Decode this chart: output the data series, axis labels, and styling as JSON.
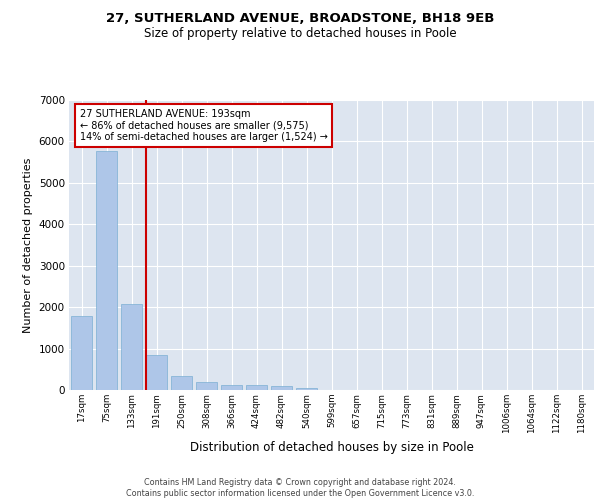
{
  "title_line1": "27, SUTHERLAND AVENUE, BROADSTONE, BH18 9EB",
  "title_line2": "Size of property relative to detached houses in Poole",
  "xlabel": "Distribution of detached houses by size in Poole",
  "ylabel": "Number of detached properties",
  "categories": [
    "17sqm",
    "75sqm",
    "133sqm",
    "191sqm",
    "250sqm",
    "308sqm",
    "366sqm",
    "424sqm",
    "482sqm",
    "540sqm",
    "599sqm",
    "657sqm",
    "715sqm",
    "773sqm",
    "831sqm",
    "889sqm",
    "947sqm",
    "1006sqm",
    "1064sqm",
    "1122sqm",
    "1180sqm"
  ],
  "values": [
    1780,
    5780,
    2080,
    840,
    350,
    200,
    120,
    110,
    100,
    60,
    0,
    0,
    0,
    0,
    0,
    0,
    0,
    0,
    0,
    0,
    0
  ],
  "bar_color": "#aec6e8",
  "bar_edge_color": "#7bafd4",
  "background_color": "#dde5f0",
  "grid_color": "#ffffff",
  "vline_color": "#cc0000",
  "annotation_text": "27 SUTHERLAND AVENUE: 193sqm\n← 86% of detached houses are smaller (9,575)\n14% of semi-detached houses are larger (1,524) →",
  "annotation_box_color": "#cc0000",
  "ylim": [
    0,
    7000
  ],
  "yticks": [
    0,
    1000,
    2000,
    3000,
    4000,
    5000,
    6000,
    7000
  ],
  "footer_line1": "Contains HM Land Registry data © Crown copyright and database right 2024.",
  "footer_line2": "Contains public sector information licensed under the Open Government Licence v3.0."
}
